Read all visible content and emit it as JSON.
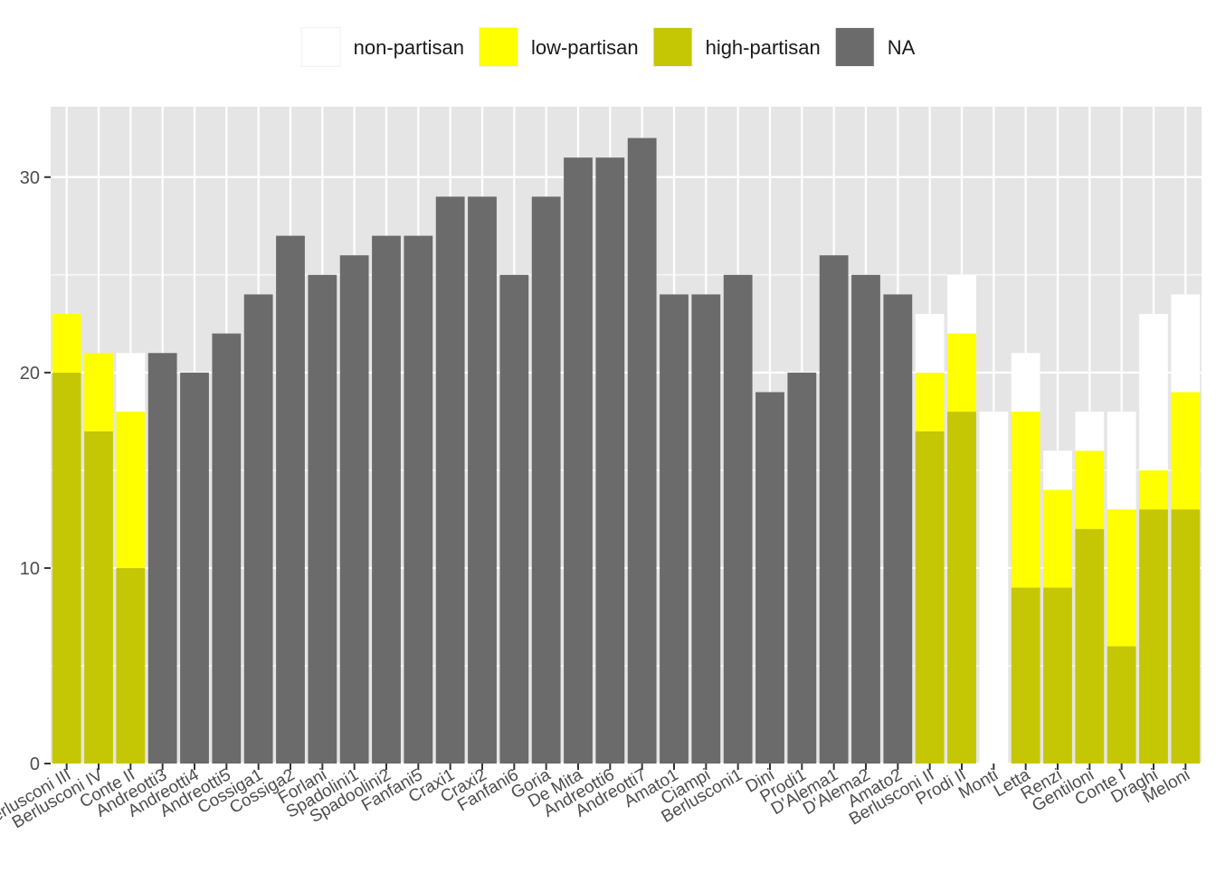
{
  "chart_data": {
    "type": "bar",
    "stacked": true,
    "title": "",
    "xlabel": "",
    "ylabel": "",
    "ylim": [
      0,
      33.6
    ],
    "y_ticks": [
      0,
      10,
      20,
      30
    ],
    "grid": true,
    "legend_position": "top",
    "categories": [
      "Berlusconi III",
      "Berlusconi IV",
      "Conte II",
      "Andreotti3",
      "Andreotti4",
      "Andreotti5",
      "Cossiga1",
      "Cossiga2",
      "Forlani",
      "Spadolini1",
      "Spadoolini2",
      "Fanfani5",
      "Craxi1",
      "Craxi2",
      "Fanfani6",
      "Goria",
      "De Mita",
      "Andreotti6",
      "Andreotti7",
      "Amato1",
      "Ciampi",
      "Berlusconi1",
      "Dini",
      "Prodi1",
      "D'Alema1",
      "D'Alema2",
      "Amato2",
      "Berlusconi II",
      "Prodi II",
      "Monti",
      "Letta",
      "Renzi",
      "Gentiloni",
      "Conte I",
      "Draghi",
      "Meloni"
    ],
    "series": [
      {
        "name": "high-partisan",
        "color": "#c5c704",
        "values": [
          20,
          17,
          10,
          0,
          0,
          0,
          0,
          0,
          0,
          0,
          0,
          0,
          0,
          0,
          0,
          0,
          0,
          0,
          0,
          0,
          0,
          0,
          0,
          0,
          0,
          0,
          0,
          17,
          18,
          0,
          9,
          9,
          12,
          6,
          13,
          13
        ]
      },
      {
        "name": "low-partisan",
        "color": "#ffff00",
        "values": [
          3,
          4,
          8,
          0,
          0,
          0,
          0,
          0,
          0,
          0,
          0,
          0,
          0,
          0,
          0,
          0,
          0,
          0,
          0,
          0,
          0,
          0,
          0,
          0,
          0,
          0,
          0,
          3,
          4,
          0,
          9,
          5,
          4,
          7,
          2,
          6
        ]
      },
      {
        "name": "non-partisan",
        "color": "#ffffff",
        "values": [
          0,
          0,
          3,
          0,
          0,
          0,
          0,
          0,
          0,
          0,
          0,
          0,
          0,
          0,
          0,
          0,
          0,
          0,
          0,
          0,
          0,
          0,
          0,
          0,
          0,
          0,
          0,
          3,
          3,
          18,
          3,
          2,
          2,
          5,
          8,
          5
        ]
      },
      {
        "name": "NA",
        "color": "#6b6b6b",
        "values": [
          0,
          0,
          0,
          21,
          20,
          22,
          24,
          27,
          25,
          26,
          27,
          27,
          29,
          29,
          25,
          29,
          31,
          31,
          32,
          24,
          24,
          25,
          19,
          20,
          26,
          25,
          24,
          0,
          0,
          0,
          0,
          0,
          0,
          0,
          0,
          0
        ]
      }
    ],
    "legend": [
      {
        "name": "non-partisan",
        "color": "#ffffff"
      },
      {
        "name": "low-partisan",
        "color": "#ffff00"
      },
      {
        "name": "high-partisan",
        "color": "#c5c704"
      },
      {
        "name": "NA",
        "color": "#6b6b6b"
      }
    ],
    "colors": {
      "panel_background": "#e5e5e5",
      "grid": "#ffffff"
    }
  }
}
